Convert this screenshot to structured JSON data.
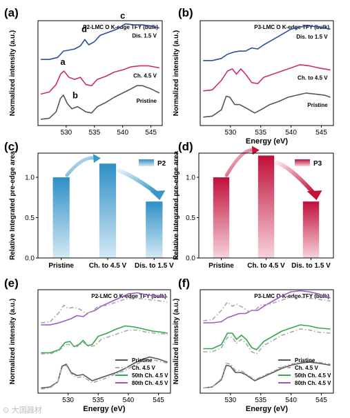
{
  "figure": {
    "watermark": "⊙ 大国器材"
  },
  "chart_data": [
    {
      "panel": "(a)",
      "type": "line",
      "title": "P2-LMC O K-edge TFY (bulk)",
      "xlabel": "",
      "ylabel": "Normalized intensity (a.u.)",
      "xlim": [
        525,
        547
      ],
      "ylim": [
        0,
        1
      ],
      "xticks": [
        530,
        535,
        540,
        545
      ],
      "series": [
        {
          "name": "Pristine",
          "color": "#555555",
          "style": "solid",
          "x": [
            525.5,
            527,
            528.2,
            529,
            529.5,
            530.2,
            531,
            532,
            533.5,
            534.5,
            535.5,
            537,
            538.5,
            540,
            541.5,
            542.5,
            543.5,
            545,
            546.5
          ],
          "y": [
            0.06,
            0.07,
            0.13,
            0.26,
            0.29,
            0.21,
            0.16,
            0.18,
            0.13,
            0.12,
            0.18,
            0.22,
            0.27,
            0.31,
            0.35,
            0.38,
            0.38,
            0.35,
            0.31
          ]
        },
        {
          "name": "Ch. 4.5 V",
          "color": "#cc2a72",
          "style": "solid",
          "x": [
            525.5,
            527,
            528.2,
            529,
            529.6,
            530.5,
            531.5,
            532.5,
            533.5,
            534.5,
            535.5,
            537,
            538.5,
            540,
            541.5,
            543,
            544.5,
            546.5
          ],
          "y": [
            0.3,
            0.32,
            0.39,
            0.49,
            0.52,
            0.46,
            0.44,
            0.46,
            0.39,
            0.38,
            0.44,
            0.47,
            0.51,
            0.53,
            0.56,
            0.57,
            0.57,
            0.55
          ]
        },
        {
          "name": "Dis. 1.5 V",
          "color": "#2c4ea0",
          "style": "solid",
          "x": [
            525.5,
            527,
            528.5,
            529.5,
            530.5,
            531.5,
            532.5,
            533.3,
            534,
            535,
            536,
            537.5,
            539,
            540.5,
            542,
            543.5,
            545,
            546.5
          ],
          "y": [
            0.63,
            0.63,
            0.65,
            0.71,
            0.72,
            0.73,
            0.76,
            0.82,
            0.77,
            0.8,
            0.86,
            0.89,
            0.92,
            0.97,
            0.96,
            0.96,
            0.95,
            0.93
          ]
        }
      ],
      "annotations": [
        {
          "text": "a",
          "x": 529.4,
          "y": 0.58
        },
        {
          "text": "b",
          "x": 531.6,
          "y": 0.26
        },
        {
          "text": "c",
          "x": 540,
          "y": 1.02
        },
        {
          "text": "d",
          "x": 533.2,
          "y": 0.89
        }
      ]
    },
    {
      "panel": "(b)",
      "type": "line",
      "title": "P3-LMC O K-edge TFY (bulk)",
      "xlabel": "Energy (eV)",
      "ylabel": "Normalized intensity (a.u.)",
      "xlim": [
        525,
        547
      ],
      "ylim": [
        0,
        1
      ],
      "xticks": [
        530,
        535,
        540,
        545
      ],
      "series": [
        {
          "name": "Pristine",
          "color": "#555555",
          "style": "solid",
          "x": [
            525.5,
            527,
            528.5,
            529.3,
            529.9,
            530.7,
            531.5,
            532.5,
            534,
            535,
            536.5,
            538,
            539.5,
            541,
            542.5,
            544,
            545.5,
            546.5
          ],
          "y": [
            0.08,
            0.09,
            0.15,
            0.28,
            0.27,
            0.2,
            0.2,
            0.17,
            0.12,
            0.15,
            0.2,
            0.23,
            0.27,
            0.29,
            0.31,
            0.3,
            0.29,
            0.27
          ]
        },
        {
          "name": "Ch. to 4.5 V",
          "color": "#cc2a72",
          "style": "solid",
          "x": [
            525.5,
            527,
            528.5,
            529.5,
            530.3,
            531,
            531.7,
            532.5,
            533.5,
            534.5,
            535.5,
            537,
            538.5,
            540,
            541.5,
            543,
            544.5,
            546.5
          ],
          "y": [
            0.33,
            0.34,
            0.43,
            0.52,
            0.54,
            0.49,
            0.54,
            0.49,
            0.41,
            0.4,
            0.46,
            0.49,
            0.52,
            0.55,
            0.58,
            0.57,
            0.55,
            0.53
          ]
        },
        {
          "name": "Dis. to 1.5 V",
          "color": "#2c4ea0",
          "style": "solid",
          "x": [
            525.5,
            527,
            528.5,
            529.5,
            530.5,
            531.5,
            532.5,
            533.5,
            534.5,
            535.5,
            537,
            538.5,
            540,
            541.5,
            543,
            544.5,
            546.5
          ],
          "y": [
            0.62,
            0.62,
            0.64,
            0.68,
            0.7,
            0.71,
            0.71,
            0.74,
            0.73,
            0.77,
            0.82,
            0.87,
            0.92,
            0.94,
            0.95,
            0.94,
            0.92
          ]
        }
      ],
      "annotations": []
    },
    {
      "panel": "(c)",
      "type": "bar",
      "categories": [
        "Pristine",
        "Ch. to 4.5 V",
        "Dis. to 1.5 V"
      ],
      "series": [
        {
          "name": "P2",
          "values": [
            1.0,
            1.17,
            0.7
          ]
        }
      ],
      "ylabel": "Relative Integrated pre-edge area",
      "xlabel": "",
      "ylim": [
        0,
        1.3
      ],
      "yticks": [
        0.0,
        0.5,
        1.0
      ],
      "color": "#3b95c9",
      "legend": "top-right"
    },
    {
      "panel": "(d)",
      "type": "bar",
      "categories": [
        "Pristine",
        "Ch. to 4.5 V",
        "Dis. to 1.5 V"
      ],
      "series": [
        {
          "name": "P3",
          "values": [
            1.0,
            1.27,
            0.7
          ]
        }
      ],
      "ylabel": "Relative Integrated pre-edge area",
      "xlabel": "",
      "ylim": [
        0,
        1.3
      ],
      "yticks": [
        0.0,
        0.5,
        1.0
      ],
      "color": "#c4143a",
      "legend": "top-right"
    },
    {
      "panel": "(e)",
      "type": "line",
      "title": "P2-LMC O K-edge TFY (bulk)",
      "xlabel": "Energy (eV)",
      "ylabel": "Normalized intensity (a.u.)",
      "xlim": [
        525,
        547
      ],
      "ylim": [
        0,
        1
      ],
      "xticks": [
        530,
        535,
        540,
        545
      ],
      "legend": "bottom-right",
      "series": [
        {
          "name": "Pristine",
          "color": "#555555",
          "style": "solid",
          "x": [
            525.5,
            527,
            528.3,
            529,
            529.7,
            530.5,
            531.5,
            532.5,
            534,
            535,
            536.5,
            538,
            539.5,
            541,
            542.5,
            543.5,
            545,
            546.5
          ],
          "y": [
            0.05,
            0.06,
            0.11,
            0.26,
            0.28,
            0.2,
            0.17,
            0.18,
            0.12,
            0.14,
            0.17,
            0.2,
            0.24,
            0.29,
            0.33,
            0.35,
            0.33,
            0.3
          ]
        },
        {
          "name": "Ch. 4.5 V",
          "color": "#a8a8a8",
          "style": "dashdot",
          "x": [
            525.5,
            527,
            528.3,
            529,
            529.7,
            530.5,
            531.5,
            532.5,
            534,
            535,
            536.5,
            538,
            539.5,
            541,
            542.5,
            543.5,
            545,
            546.5
          ],
          "y": [
            0.04,
            0.05,
            0.11,
            0.25,
            0.27,
            0.19,
            0.15,
            0.16,
            0.1,
            0.12,
            0.15,
            0.19,
            0.22,
            0.27,
            0.31,
            0.33,
            0.31,
            0.29
          ]
        },
        {
          "name": "50th Ch. 4.5 V",
          "color": "#2ea84a",
          "style": "solid",
          "x": [
            525.5,
            527,
            528.5,
            529.5,
            530.3,
            531,
            531.8,
            532.5,
            533.2,
            534,
            535,
            536.5,
            538,
            539.5,
            541,
            542.5,
            544,
            545.5,
            546.5
          ],
          "y": [
            0.39,
            0.39,
            0.42,
            0.49,
            0.5,
            0.45,
            0.47,
            0.51,
            0.46,
            0.47,
            0.55,
            0.58,
            0.62,
            0.65,
            0.64,
            0.62,
            0.6,
            0.59,
            0.58
          ]
        },
        {
          "name": "80th Ch. 4.5 V",
          "color": "#a056c9",
          "style": "solid",
          "x": [
            525.5,
            527,
            528.5,
            529.5,
            530.5,
            531.5,
            532.5,
            533.5,
            534.5,
            535.5,
            537,
            538.5,
            540,
            541.5,
            543,
            544.5,
            546.5
          ],
          "y": [
            0.66,
            0.66,
            0.68,
            0.7,
            0.72,
            0.75,
            0.74,
            0.78,
            0.8,
            0.84,
            0.88,
            0.92,
            0.96,
            0.97,
            0.95,
            0.94,
            0.93
          ]
        },
        {
          "name": "",
          "color": "#a8a8a8",
          "style": "dashdot",
          "x": [
            525.5,
            527,
            528.5,
            529.3,
            530,
            531,
            532,
            533,
            534,
            535,
            536.5,
            538,
            539.5,
            541,
            542.5,
            544,
            545.5,
            546.5
          ],
          "y": [
            0.68,
            0.69,
            0.78,
            0.85,
            0.82,
            0.83,
            0.81,
            0.77,
            0.79,
            0.84,
            0.85,
            0.88,
            0.91,
            0.92,
            0.91,
            0.9,
            0.89,
            0.88
          ]
        },
        {
          "name": "",
          "color": "#a8a8a8",
          "style": "dashdot",
          "x": [
            525.5,
            527,
            528.5,
            529.5,
            530.5,
            531.5,
            532.5,
            533.5,
            534.5,
            535.5,
            537,
            538.5,
            540,
            541.5,
            543,
            544.5,
            546.5
          ],
          "y": [
            0.38,
            0.38,
            0.41,
            0.47,
            0.47,
            0.45,
            0.49,
            0.45,
            0.46,
            0.52,
            0.55,
            0.58,
            0.61,
            0.61,
            0.59,
            0.58,
            0.57
          ]
        }
      ]
    },
    {
      "panel": "(f)",
      "type": "line",
      "title": "P3-LMC O K-edge TFY (bulk)",
      "xlabel": "Energy (eV)",
      "ylabel": "Normalized intensity (a.u.)",
      "xlim": [
        525,
        547
      ],
      "ylim": [
        0,
        1
      ],
      "xticks": [
        530,
        535,
        540,
        545
      ],
      "legend": "bottom-right",
      "series": [
        {
          "name": "Pristine",
          "color": "#555555",
          "style": "solid",
          "x": [
            525.5,
            527,
            528.5,
            529.3,
            530,
            530.8,
            531.7,
            532.5,
            534,
            535.5,
            537,
            538.5,
            540,
            541.5,
            543,
            544.5,
            546.5
          ],
          "y": [
            0.05,
            0.06,
            0.13,
            0.27,
            0.26,
            0.2,
            0.2,
            0.18,
            0.12,
            0.16,
            0.2,
            0.24,
            0.27,
            0.29,
            0.3,
            0.29,
            0.27
          ]
        },
        {
          "name": "Ch. 4.5 V",
          "color": "#a8a8a8",
          "style": "dashdot",
          "x": [
            525.5,
            527,
            528.5,
            529.3,
            530,
            530.8,
            531.7,
            532.5,
            534,
            535.5,
            537,
            538.5,
            540,
            541.5,
            543,
            544.5,
            546.5
          ],
          "y": [
            0.05,
            0.06,
            0.14,
            0.29,
            0.28,
            0.22,
            0.22,
            0.19,
            0.13,
            0.17,
            0.21,
            0.25,
            0.28,
            0.3,
            0.31,
            0.3,
            0.28
          ]
        },
        {
          "name": "50th Ch. 4.5 V",
          "color": "#2ea84a",
          "style": "solid",
          "x": [
            525.5,
            527,
            528.5,
            529.5,
            530.3,
            531,
            531.8,
            532.6,
            533.5,
            534.3,
            535.5,
            537,
            538.5,
            540,
            541.5,
            543,
            544.5,
            546.5
          ],
          "y": [
            0.43,
            0.43,
            0.47,
            0.58,
            0.58,
            0.52,
            0.56,
            0.52,
            0.44,
            0.42,
            0.5,
            0.55,
            0.6,
            0.63,
            0.66,
            0.65,
            0.63,
            0.62
          ]
        },
        {
          "name": "80th Ch. 4.5 V",
          "color": "#a056c9",
          "style": "solid",
          "x": [
            525.5,
            527,
            528.5,
            529.5,
            530.5,
            531.5,
            532.5,
            533.5,
            534.5,
            535.5,
            537,
            538.5,
            540,
            541.5,
            543,
            544.5,
            546.5
          ],
          "y": [
            0.68,
            0.68,
            0.69,
            0.73,
            0.75,
            0.77,
            0.77,
            0.8,
            0.8,
            0.84,
            0.89,
            0.94,
            0.98,
            0.99,
            0.98,
            0.96,
            0.92
          ]
        },
        {
          "name": "",
          "color": "#a8a8a8",
          "style": "dashdot",
          "x": [
            525.5,
            527,
            528.5,
            529.5,
            530.3,
            531,
            532,
            533,
            534,
            535,
            536.5,
            538,
            539.5,
            541,
            542.5,
            544,
            545.5,
            546.5
          ],
          "y": [
            0.7,
            0.71,
            0.8,
            0.88,
            0.84,
            0.86,
            0.83,
            0.79,
            0.8,
            0.85,
            0.86,
            0.89,
            0.92,
            0.93,
            0.92,
            0.91,
            0.9,
            0.89
          ]
        },
        {
          "name": "",
          "color": "#a8a8a8",
          "style": "dashdot",
          "x": [
            525.5,
            527,
            528.5,
            529.5,
            530.3,
            531,
            531.8,
            532.6,
            533.5,
            534.3,
            535.5,
            537,
            538.5,
            540,
            541.5,
            543,
            544.5,
            546.5
          ],
          "y": [
            0.4,
            0.4,
            0.44,
            0.54,
            0.54,
            0.48,
            0.52,
            0.48,
            0.4,
            0.38,
            0.46,
            0.51,
            0.56,
            0.59,
            0.62,
            0.61,
            0.59,
            0.58
          ]
        }
      ]
    }
  ]
}
